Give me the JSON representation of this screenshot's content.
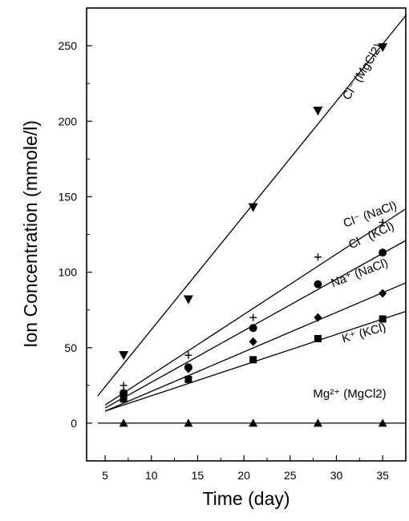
{
  "chart_data": {
    "type": "scatter",
    "title": "",
    "xlabel": "Time (day)",
    "ylabel": "Ion Concentration (mmole/l)",
    "xlim": [
      3,
      37.5
    ],
    "ylim": [
      -25,
      275
    ],
    "xticks": [
      5,
      10,
      15,
      20,
      25,
      30,
      35
    ],
    "xtick_labels": [
      "5",
      "10",
      "15",
      "20",
      "25",
      "30",
      "35"
    ],
    "yticks": [
      0,
      50,
      100,
      150,
      200,
      250
    ],
    "ytick_labels": [
      "0",
      "50",
      "100",
      "150",
      "200",
      "250"
    ],
    "grid": false,
    "legend": "none",
    "series": [
      {
        "name": "Cl- (MgCl2)",
        "label_text": "Cl⁻ (MgCl2)",
        "marker": "triangle-down",
        "x": [
          7,
          14,
          21,
          28,
          35
        ],
        "y": [
          45,
          82,
          143,
          207,
          249
        ],
        "fit": {
          "x": [
            4.2,
            37.5
          ],
          "y": [
            18,
            270
          ]
        }
      },
      {
        "name": "Cl- (NaCl)",
        "label_text": "Cl⁻ (NaCl)",
        "marker": "plus",
        "x": [
          7,
          14,
          21,
          28,
          35
        ],
        "y": [
          25,
          45,
          70,
          110,
          133
        ],
        "fit": {
          "x": [
            5,
            37.5
          ],
          "y": [
            12,
            142
          ]
        }
      },
      {
        "name": "Cl- (KCl)",
        "label_text": "Cl⁻ (KCl)",
        "marker": "circle",
        "x": [
          7,
          14,
          21,
          28,
          35
        ],
        "y": [
          20,
          37,
          63,
          92,
          113
        ],
        "fit": {
          "x": [
            5,
            37.5
          ],
          "y": [
            10,
            121
          ]
        }
      },
      {
        "name": "Na+ (NaCl)",
        "label_text": "Na⁺ (NaCl)",
        "marker": "diamond",
        "x": [
          7,
          14,
          21,
          28,
          35
        ],
        "y": [
          19,
          36,
          54,
          70,
          86
        ],
        "fit": {
          "x": [
            5,
            37.5
          ],
          "y": [
            8,
            93
          ]
        }
      },
      {
        "name": "K+ (KCl)",
        "label_text": "K⁺ (KCl)",
        "marker": "square",
        "x": [
          7,
          14,
          21,
          28,
          35
        ],
        "y": [
          16,
          29,
          42,
          56,
          69
        ],
        "fit": {
          "x": [
            5,
            37.5
          ],
          "y": [
            8,
            74
          ]
        }
      },
      {
        "name": "Mg2+ (MgCl2)",
        "label_text": "Mg²⁺ (MgCl2)",
        "marker": "triangle-up",
        "x": [
          7,
          14,
          21,
          28,
          35
        ],
        "y": [
          0,
          0,
          0,
          0,
          0
        ],
        "fit": {
          "x": [
            4.2,
            37.5
          ],
          "y": [
            0,
            0
          ]
        }
      }
    ]
  }
}
